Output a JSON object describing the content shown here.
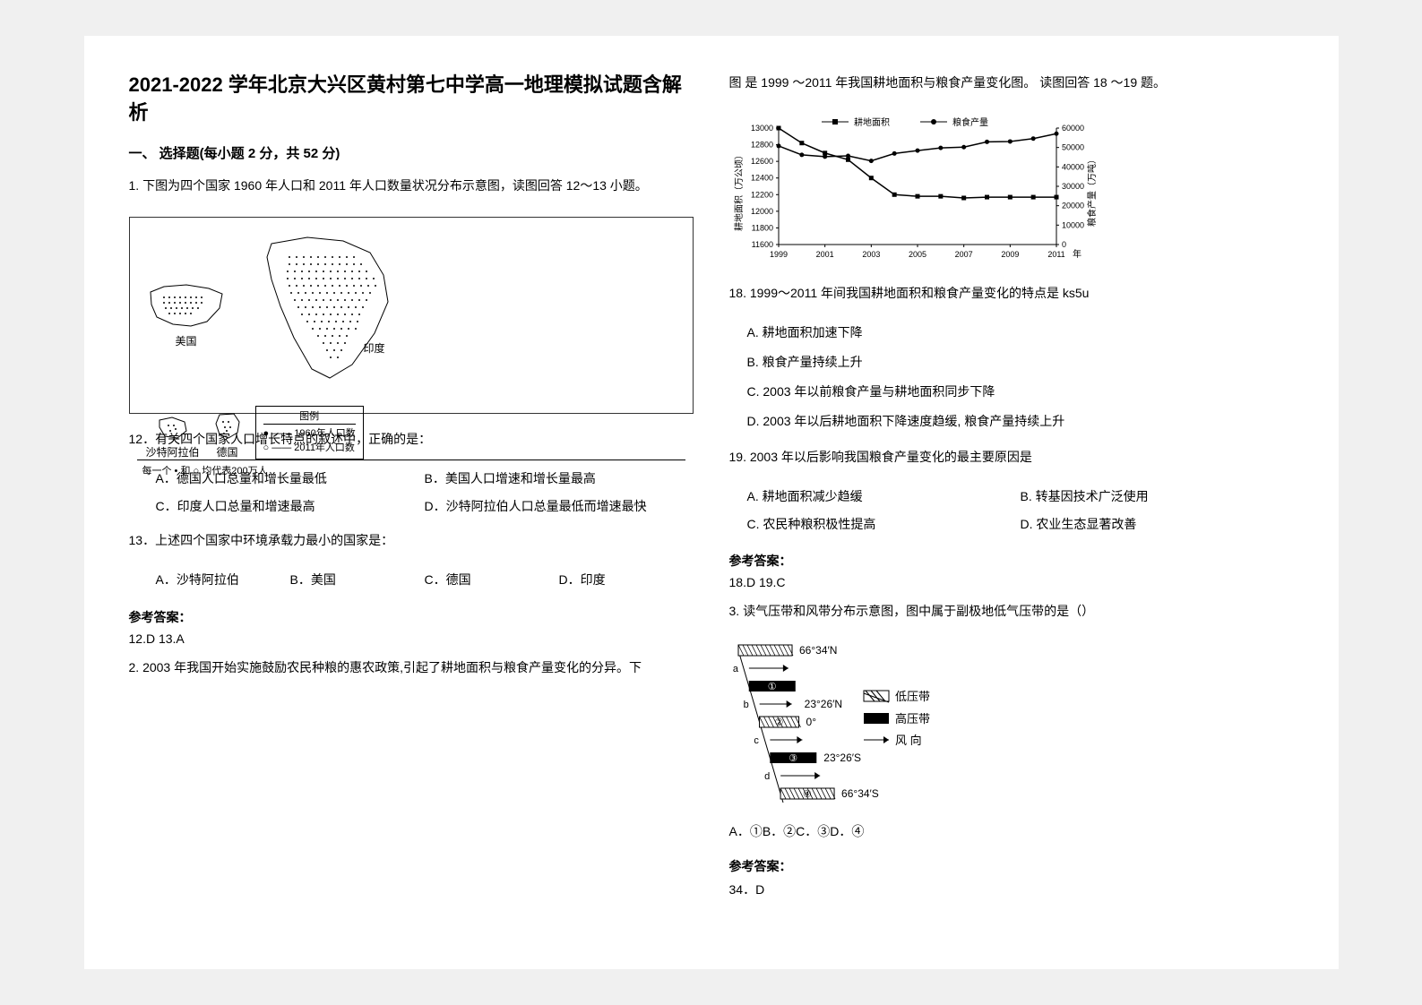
{
  "title": "2021-2022 学年北京大兴区黄村第七中学高一地理模拟试题含解析",
  "section1_head": "一、 选择题(每小题 2 分，共 52 分)",
  "q1_stem": "1. 下图为四个国家 1960 年人口和 2011 年人口数量状况分布示意图，读图回答 12～13 小题。",
  "map_labels": {
    "usa": "美国",
    "saudi": "沙特阿拉伯",
    "germany": "德国",
    "india": "印度",
    "legend_title": "图例",
    "legend_1960": "1960年人口数",
    "legend_2011": "2011年人口数",
    "legend_note": "每一个 • 和 ○ 均代表200万人"
  },
  "q12": "12．有关四个国家人口增长特点的叙述中，正确的是：",
  "q12_opts": {
    "A": "A．德国人口总量和增长量最低",
    "B": "B．美国人口增速和增长量最高",
    "C": "C．印度人口总量和增速最高",
    "D": "D．沙特阿拉伯人口总量最低而增速最快"
  },
  "q13": "13．上述四个国家中环境承载力最小的国家是：",
  "q13_opts": {
    "A": "A．沙特阿拉伯",
    "B": "B．美国",
    "C": "C．德国",
    "D": "D．印度"
  },
  "answer_label": "参考答案：",
  "ans_1": "12.D    13.A",
  "q2_stem": "2. 2003 年我国开始实施鼓励农民种粮的惠农政策,引起了耕地面积与粮食产量变化的分异。下图 是 1999 ～2011 年我国耕地面积与粮食产量变化图。 读图回答 18 ～19 题。",
  "chart": {
    "type": "line",
    "x_label": "年",
    "x_ticks": [
      1999,
      2001,
      2003,
      2005,
      2007,
      2009,
      2011
    ],
    "left_axis_label": "耕地面积（万公顷）",
    "left_ticks": [
      11600,
      11800,
      12000,
      12200,
      12400,
      12600,
      12800,
      13000
    ],
    "right_axis_label": "粮食产量（万吨）",
    "right_ticks": [
      0,
      10000,
      20000,
      30000,
      40000,
      50000,
      60000
    ],
    "legend": {
      "area": "耕地面积",
      "grain": "粮食产量"
    },
    "area_series": [
      13000,
      12820,
      12700,
      12620,
      12400,
      12200,
      12180,
      12180,
      12160,
      12170,
      12170,
      12170,
      12170
    ],
    "grain_series": [
      50800,
      46200,
      45300,
      45700,
      43100,
      46900,
      48400,
      49800,
      50200,
      52900,
      53100,
      54600,
      57100
    ],
    "colors": {
      "line": "#000000",
      "grid": "#000000",
      "bg": "#ffffff"
    }
  },
  "q18": "18.    1999～2011 年间我国耕地面积和粮食产量变化的特点是 ks5u",
  "q18_opts": {
    "A": "A.    耕地面积加速下降",
    "B": "B.    粮食产量持续上升",
    "C": "C.    2003 年以前粮食产量与耕地面积同步下降",
    "D": "D.    2003 年以后耕地面积下降速度趋缓, 粮食产量持续上升"
  },
  "q19": "19.    2003 年以后影响我国粮食产量变化的最主要原因是",
  "q19_opts": {
    "A": "A.    耕地面积减少趋缓",
    "B": "B.    转基因技术广泛使用",
    "C": "C.    农民种粮积极性提高",
    "D": "D.    农业生态显著改善"
  },
  "ans_2": "18.D    19.C",
  "q3_stem": "3. 读气压带和风带分布示意图，图中属于副极地低气压带的是（）",
  "pressure_labels": {
    "lat_66N": "66°34′N",
    "lat_23N": "23°26′N",
    "lat_0": "0°",
    "lat_23S": "23°26′S",
    "lat_66S": "66°34′S",
    "low": "低压带",
    "high": "高压带",
    "wind": "风 向",
    "a": "a",
    "b": "b",
    "c": "c",
    "d": "d",
    "circ1": "①",
    "circ2": "②",
    "circ3": "③",
    "circ4": "④"
  },
  "q3_opts": "A．①B．②C．③D．④",
  "ans_3": "34．D"
}
